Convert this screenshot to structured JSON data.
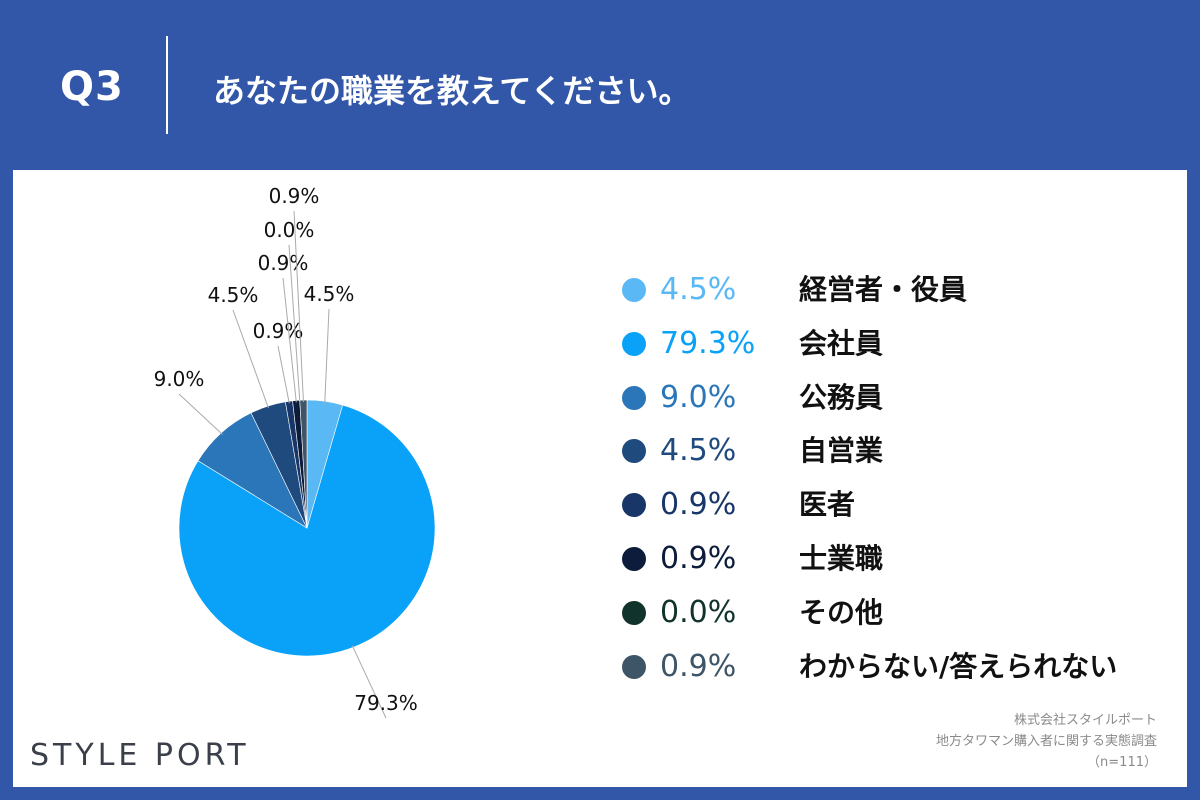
{
  "header": {
    "q_number": "Q3",
    "question": "あなたの職業を教えてください。"
  },
  "chart_data": {
    "type": "pie",
    "categories": [
      "経営者・役員",
      "会社員",
      "公務員",
      "自営業",
      "医者",
      "士業職",
      "その他",
      "わからない/答えられない"
    ],
    "values": [
      4.5,
      79.3,
      9.0,
      4.5,
      0.9,
      0.9,
      0.0,
      0.9
    ],
    "value_labels": [
      "4.5%",
      "79.3%",
      "9.0%",
      "4.5%",
      "0.9%",
      "0.9%",
      "0.0%",
      "0.9%"
    ],
    "colors": [
      "#5ab8f5",
      "#0aa2f8",
      "#2a76b8",
      "#1e4a7e",
      "#183668",
      "#0c1c3a",
      "#10332b",
      "#3e5568"
    ],
    "legend_text_colors": [
      "#5ab8f5",
      "#0aa2f8",
      "#2a76b8",
      "#1e4a7e",
      "#183668",
      "#0c1c3a",
      "#10332b",
      "#3e5568"
    ],
    "start": "12 o'clock",
    "direction": "clockwise",
    "legend_position": "right"
  },
  "logo": "STYLE PORT",
  "source": {
    "line1": "株式会社スタイルポート",
    "line2": "地方タワマン購入者に関する実態調査",
    "line3": "（n=111）"
  }
}
